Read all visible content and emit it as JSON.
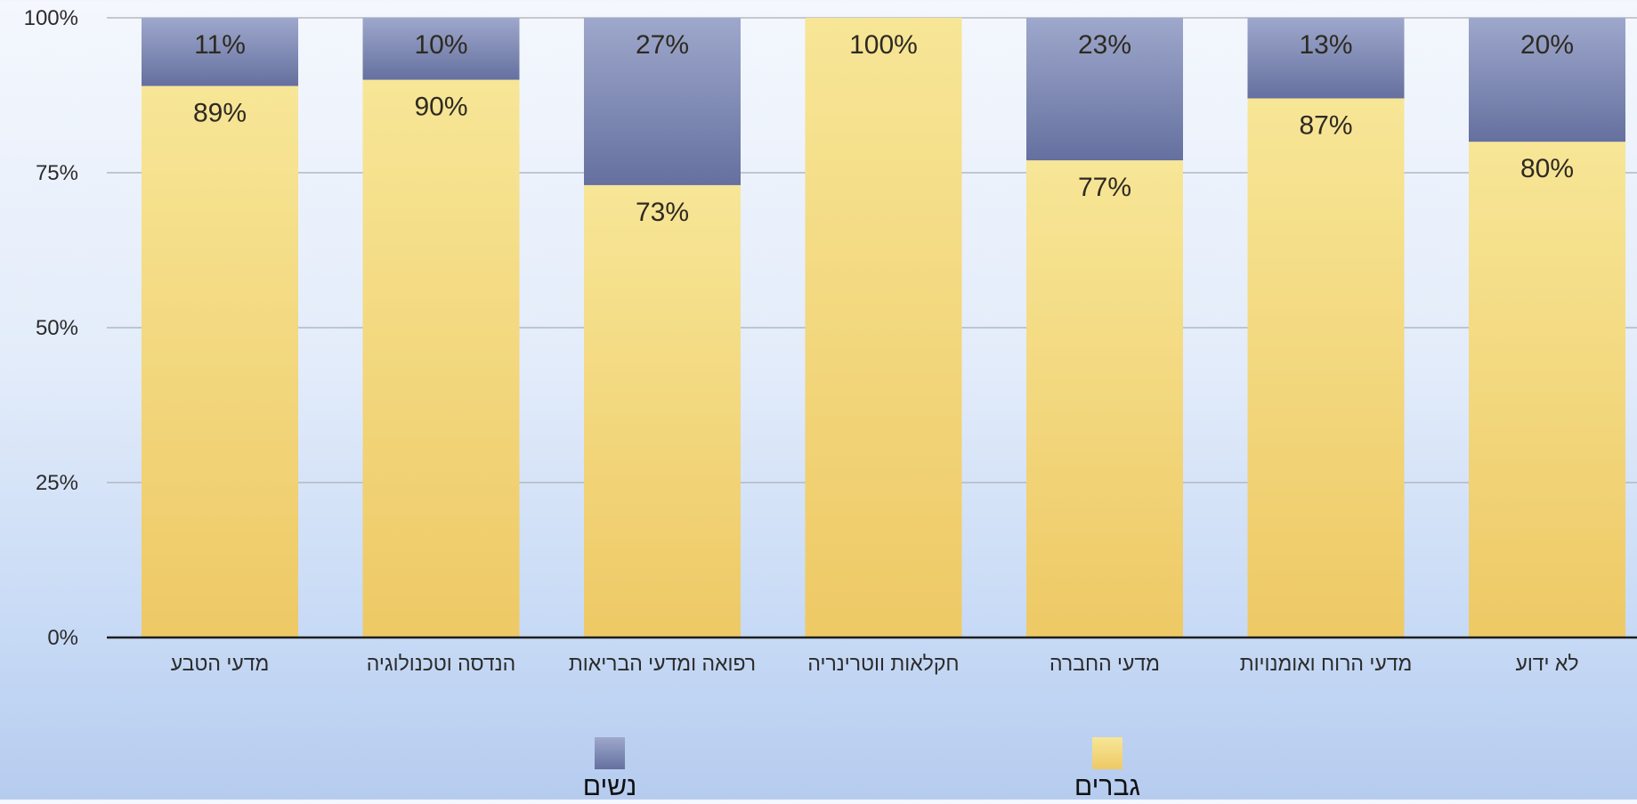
{
  "chart_data": {
    "type": "bar",
    "stacked": true,
    "normalized": true,
    "categories": [
      "מדעי הטבע",
      "הנדסה וטכנולוגיה",
      "רפואה ומדעי הבריאות",
      "חקלאות ווטרינריה",
      "מדעי החברה",
      "מדעי הרוח ואומנויות",
      "לא ידוע"
    ],
    "series": [
      {
        "name": "גברים",
        "values": [
          89,
          90,
          73,
          100,
          77,
          87,
          80
        ],
        "labels": [
          "89%",
          "90%",
          "73%",
          "100%",
          "77%",
          "87%",
          "80%"
        ],
        "color": "#f2d77c"
      },
      {
        "name": "נשים",
        "values": [
          11,
          10,
          27,
          0,
          23,
          13,
          20
        ],
        "labels": [
          "11%",
          "10%",
          "27%",
          "",
          "23%",
          "13%",
          "20%"
        ],
        "color": "#7a86b4"
      }
    ],
    "ylim": [
      0,
      100
    ],
    "yticks": [
      "0%",
      "25%",
      "50%",
      "75%",
      "100%"
    ],
    "grid": true,
    "legend_position": "bottom"
  }
}
